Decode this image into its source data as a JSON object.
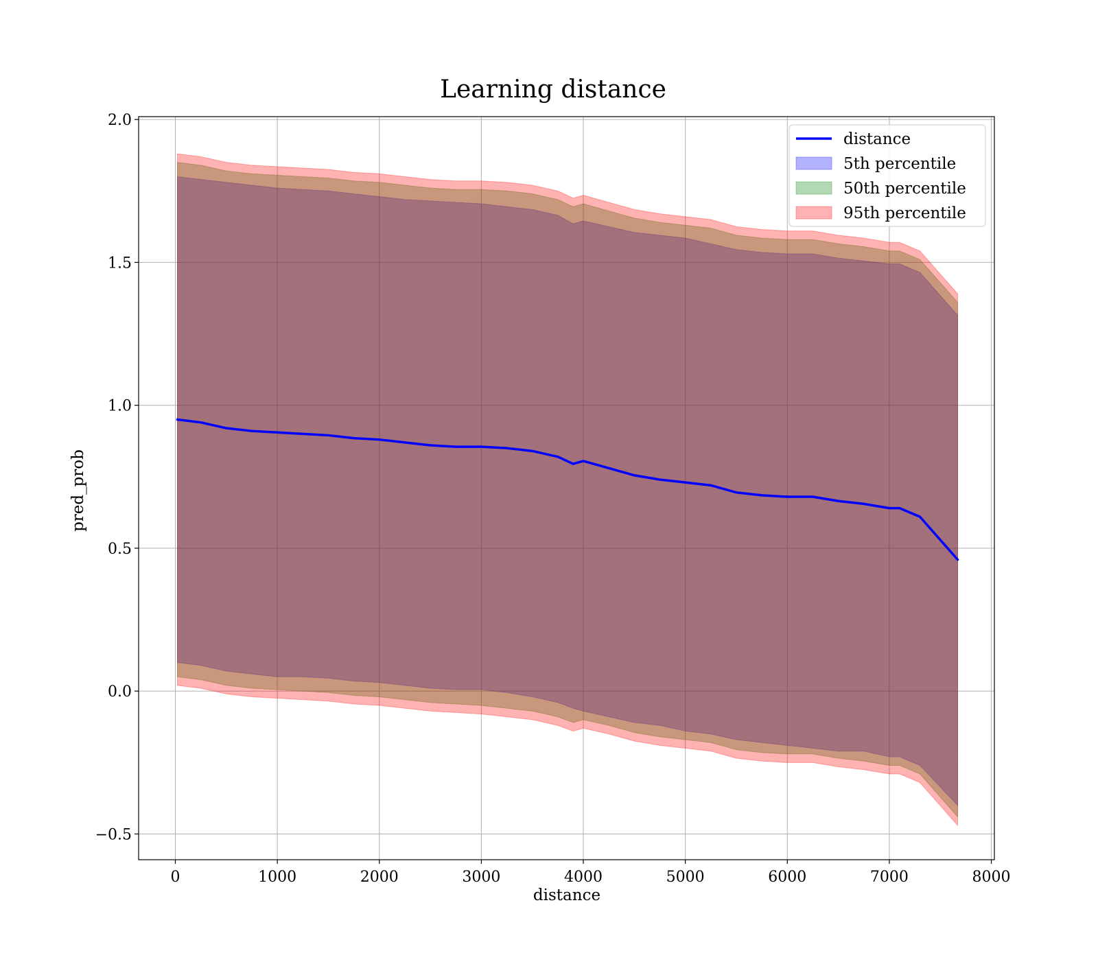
{
  "chart_data": {
    "type": "line",
    "title": "Learning distance",
    "xlabel": "distance",
    "ylabel": "pred_prob",
    "xlim": [
      -360,
      8030
    ],
    "ylim": [
      -0.59,
      2.01
    ],
    "xticks": [
      0,
      1000,
      2000,
      3000,
      4000,
      5000,
      6000,
      7000,
      8000
    ],
    "xtick_labels": [
      "0",
      "1000",
      "2000",
      "3000",
      "4000",
      "5000",
      "6000",
      "7000",
      "8000"
    ],
    "yticks": [
      -0.5,
      0.0,
      0.5,
      1.0,
      1.5,
      2.0
    ],
    "ytick_labels": [
      "−0.5",
      "0.0",
      "0.5",
      "1.0",
      "1.5",
      "2.0"
    ],
    "grid": true,
    "legend_position": "top-right",
    "legend": [
      {
        "label": "distance",
        "kind": "line",
        "color": "#0000ff"
      },
      {
        "label": "5th percentile",
        "kind": "patch",
        "color": "#0000ff",
        "alpha": 0.3
      },
      {
        "label": "50th percentile",
        "kind": "patch",
        "color": "#008000",
        "alpha": 0.3
      },
      {
        "label": "95th percentile",
        "kind": "patch",
        "color": "#ff0000",
        "alpha": 0.3
      }
    ],
    "x": [
      20,
      250,
      500,
      750,
      1000,
      1250,
      1500,
      1750,
      2000,
      2250,
      2500,
      2750,
      3000,
      3250,
      3500,
      3750,
      3900,
      4000,
      4250,
      4500,
      4750,
      5000,
      5250,
      5500,
      5750,
      6000,
      6250,
      6500,
      6750,
      7000,
      7100,
      7300,
      7670
    ],
    "series": [
      {
        "name": "distance",
        "kind": "line",
        "color": "#0000ff",
        "values": [
          0.95,
          0.94,
          0.92,
          0.91,
          0.905,
          0.9,
          0.895,
          0.885,
          0.88,
          0.87,
          0.86,
          0.855,
          0.855,
          0.85,
          0.84,
          0.82,
          0.795,
          0.805,
          0.78,
          0.755,
          0.74,
          0.73,
          0.72,
          0.695,
          0.685,
          0.68,
          0.68,
          0.665,
          0.655,
          0.64,
          0.64,
          0.61,
          0.46
        ]
      },
      {
        "name": "5th percentile",
        "kind": "band",
        "color": "#0000ff",
        "alpha": 0.3,
        "lower": [
          0.1,
          0.09,
          0.07,
          0.06,
          0.05,
          0.05,
          0.045,
          0.035,
          0.03,
          0.02,
          0.01,
          0.005,
          0.005,
          -0.005,
          -0.02,
          -0.04,
          -0.06,
          -0.07,
          -0.09,
          -0.11,
          -0.12,
          -0.14,
          -0.15,
          -0.17,
          -0.18,
          -0.19,
          -0.2,
          -0.21,
          -0.21,
          -0.23,
          -0.23,
          -0.26,
          -0.4
        ],
        "upper": [
          1.8,
          1.79,
          1.78,
          1.77,
          1.76,
          1.755,
          1.75,
          1.74,
          1.73,
          1.72,
          1.715,
          1.71,
          1.705,
          1.695,
          1.685,
          1.665,
          1.635,
          1.645,
          1.625,
          1.605,
          1.595,
          1.585,
          1.565,
          1.545,
          1.535,
          1.53,
          1.53,
          1.515,
          1.505,
          1.495,
          1.495,
          1.465,
          1.315
        ]
      },
      {
        "name": "50th percentile",
        "kind": "band",
        "color": "#008000",
        "alpha": 0.3,
        "lower": [
          0.05,
          0.04,
          0.02,
          0.01,
          0.005,
          0.0,
          -0.005,
          -0.015,
          -0.02,
          -0.03,
          -0.04,
          -0.045,
          -0.05,
          -0.06,
          -0.07,
          -0.09,
          -0.11,
          -0.1,
          -0.12,
          -0.145,
          -0.16,
          -0.17,
          -0.18,
          -0.205,
          -0.215,
          -0.22,
          -0.22,
          -0.235,
          -0.245,
          -0.26,
          -0.26,
          -0.29,
          -0.44
        ],
        "upper": [
          1.85,
          1.84,
          1.82,
          1.81,
          1.805,
          1.8,
          1.795,
          1.785,
          1.78,
          1.77,
          1.76,
          1.755,
          1.755,
          1.75,
          1.74,
          1.72,
          1.695,
          1.705,
          1.68,
          1.655,
          1.64,
          1.63,
          1.62,
          1.595,
          1.585,
          1.58,
          1.58,
          1.565,
          1.555,
          1.54,
          1.54,
          1.51,
          1.36
        ]
      },
      {
        "name": "95th percentile",
        "kind": "band",
        "color": "#ff0000",
        "alpha": 0.3,
        "lower": [
          0.02,
          0.01,
          -0.01,
          -0.02,
          -0.025,
          -0.03,
          -0.035,
          -0.045,
          -0.05,
          -0.06,
          -0.07,
          -0.075,
          -0.08,
          -0.09,
          -0.1,
          -0.12,
          -0.14,
          -0.13,
          -0.15,
          -0.175,
          -0.19,
          -0.2,
          -0.21,
          -0.235,
          -0.245,
          -0.25,
          -0.25,
          -0.265,
          -0.275,
          -0.29,
          -0.29,
          -0.32,
          -0.47
        ],
        "upper": [
          1.88,
          1.87,
          1.85,
          1.84,
          1.835,
          1.83,
          1.825,
          1.815,
          1.81,
          1.8,
          1.79,
          1.785,
          1.785,
          1.78,
          1.77,
          1.75,
          1.725,
          1.735,
          1.71,
          1.685,
          1.67,
          1.66,
          1.65,
          1.625,
          1.615,
          1.61,
          1.61,
          1.595,
          1.585,
          1.57,
          1.57,
          1.54,
          1.39
        ]
      }
    ]
  }
}
